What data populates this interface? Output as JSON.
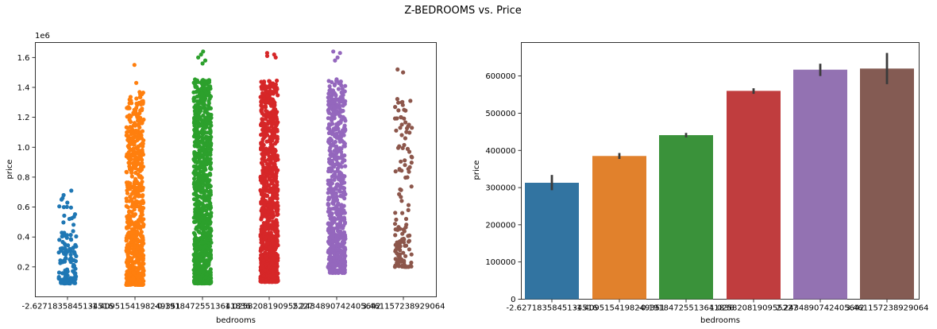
{
  "suptitle": "Z-BEDROOMS vs. Price",
  "chart_data": [
    {
      "type": "scatter",
      "subtype": "stripplot",
      "xlabel": "bedrooms",
      "ylabel": "price",
      "y_offset_text": "1e6",
      "y_scale_factor": 1000000,
      "ylim": [
        0,
        1700000
      ],
      "yticks": [
        200000,
        400000,
        600000,
        800000,
        1000000,
        1200000,
        1400000,
        1600000
      ],
      "ytick_labels": [
        "0.2",
        "0.4",
        "0.6",
        "0.8",
        "1.0",
        "1.2",
        "1.4",
        "1.6"
      ],
      "categories": [
        "-2.6271835845134516",
        "-1.4095154198249351",
        "-0.19184725513641836",
        "1.0258208190955227",
        "2.2434890742405642",
        "3.461157238929064"
      ],
      "x_tick_labels": [
        "-2.6271835845134516",
        "-1.4095154198249351",
        "-0.19184725513641836",
        "1.0258208190955227",
        "2.2434890742405642",
        "3.461157238929064"
      ],
      "series": [
        {
          "color": "#1f77b4",
          "min": 90000,
          "max": 710000,
          "outliers": [
            710000,
            680000,
            660000,
            650000,
            600000
          ],
          "density": "low"
        },
        {
          "color": "#ff7f0e",
          "min": 80000,
          "max": 1550000,
          "outliers": [
            1550000,
            1430000,
            1260000,
            1250000,
            1100000,
            1080000,
            1050000,
            1020000
          ],
          "density": "high"
        },
        {
          "color": "#2ca02c",
          "min": 90000,
          "max": 1640000,
          "outliers": [
            1640000,
            1620000,
            1600000,
            1580000,
            1560000
          ],
          "density": "veryhigh"
        },
        {
          "color": "#d62728",
          "min": 100000,
          "max": 1630000,
          "outliers": [
            1630000,
            1620000,
            1610000,
            1600000
          ],
          "density": "veryhigh"
        },
        {
          "color": "#9467bd",
          "min": 160000,
          "max": 1640000,
          "outliers": [
            1640000,
            1630000,
            1600000,
            1580000
          ],
          "density": "high"
        },
        {
          "color": "#8c564b",
          "min": 200000,
          "max": 1520000,
          "outliers": [
            1520000,
            1500000,
            1310000,
            1300000,
            1250000,
            1200000,
            1150000
          ],
          "density": "low"
        }
      ]
    },
    {
      "type": "bar",
      "xlabel": "bedrooms",
      "ylabel": "price",
      "ylim": [
        0,
        690000
      ],
      "yticks": [
        0,
        100000,
        200000,
        300000,
        400000,
        500000,
        600000
      ],
      "ytick_labels": [
        "0",
        "100000",
        "200000",
        "300000",
        "400000",
        "500000",
        "600000"
      ],
      "categories": [
        "-2.6271835845134516",
        "-1.4095154198249351",
        "-0.19184725513641836",
        "1.0258208190955227",
        "2.2434890742405642",
        "3.461157238929064"
      ],
      "x_tick_labels": [
        "-2.6271835845134516",
        "-1.4095154198249351",
        "-0.19184725513641836",
        "1.0258208190955227",
        "2.2434890742405642",
        "3.461157238929064"
      ],
      "values": [
        313000,
        385000,
        441000,
        560000,
        617000,
        620000
      ],
      "error_low": [
        293000,
        377000,
        435000,
        552000,
        600000,
        578000
      ],
      "error_high": [
        334000,
        393000,
        447000,
        567000,
        633000,
        662000
      ],
      "colors": [
        "#3274a1",
        "#e1812c",
        "#3a923a",
        "#c03d3e",
        "#9372b2",
        "#845b53"
      ]
    }
  ]
}
